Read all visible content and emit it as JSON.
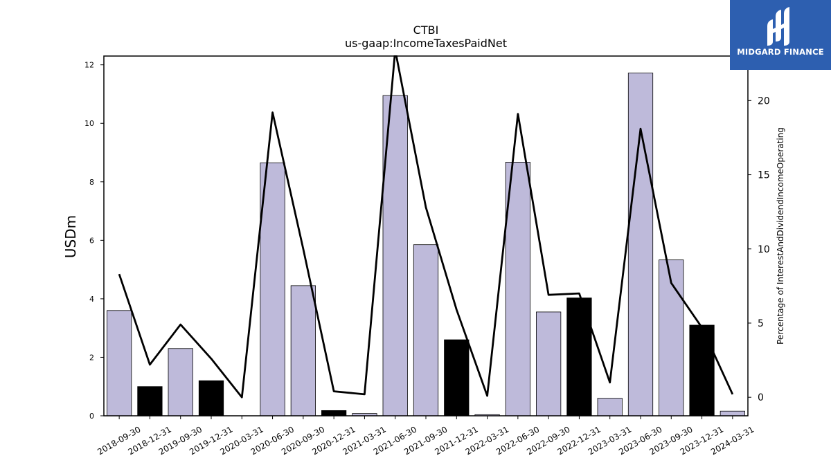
{
  "brand": {
    "name": "MIDGARD FINANCE",
    "color": "#2d5fb0"
  },
  "chart_data": {
    "type": "bar",
    "title": "CTBI",
    "subtitle": "us-gaap:IncomeTaxesPaidNet",
    "ylabel": "USDm",
    "ylabel_right": "Percentage of InterestAndDividendIncomeOperating",
    "ylim": [
      0,
      12.3
    ],
    "ylim_right": [
      -1.25,
      23
    ],
    "yticks": [
      0,
      2,
      4,
      6,
      8,
      10,
      12
    ],
    "yticks_right": [
      0,
      5,
      10,
      15,
      20
    ],
    "categories": [
      "2018-09-30",
      "2018-12-31",
      "2019-09-30",
      "2019-12-31",
      "2020-03-31",
      "2020-06-30",
      "2020-09-30",
      "2020-12-31",
      "2021-03-31",
      "2021-06-30",
      "2021-09-30",
      "2021-12-31",
      "2022-03-31",
      "2022-06-30",
      "2022-09-30",
      "2022-12-31",
      "2023-03-31",
      "2023-06-30",
      "2023-09-30",
      "2023-12-31",
      "2024-03-31"
    ],
    "series": [
      {
        "type": "bar",
        "values": [
          3.6,
          1.0,
          2.3,
          1.2,
          0.0,
          8.65,
          4.45,
          0.18,
          0.08,
          10.95,
          5.85,
          2.6,
          0.04,
          8.67,
          3.55,
          4.03,
          0.6,
          11.72,
          5.33,
          3.1,
          0.16
        ],
        "colors": [
          "#bebada",
          "#000000",
          "#bebada",
          "#000000",
          "#bebada",
          "#bebada",
          "#bebada",
          "#000000",
          "#bebada",
          "#bebada",
          "#bebada",
          "#000000",
          "#bebada",
          "#bebada",
          "#bebada",
          "#000000",
          "#bebada",
          "#bebada",
          "#bebada",
          "#000000",
          "#bebada"
        ]
      },
      {
        "type": "line",
        "axis": "right",
        "color": "#000000",
        "values": [
          8.3,
          2.2,
          4.9,
          2.6,
          0.0,
          19.2,
          10.0,
          0.4,
          0.2,
          23.4,
          12.8,
          5.9,
          0.1,
          19.1,
          6.9,
          7.0,
          1.0,
          18.1,
          7.7,
          4.7,
          0.2
        ]
      }
    ],
    "grid": false,
    "legend": "none"
  }
}
